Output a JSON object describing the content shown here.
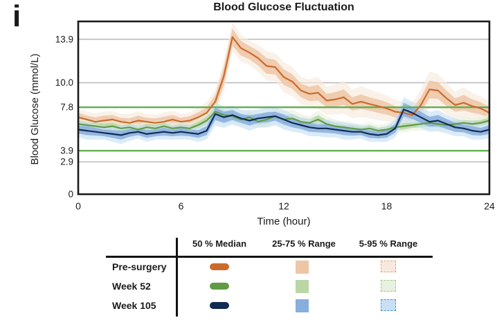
{
  "figure_label": "i",
  "colors": {
    "gridline": "#C4C4C4",
    "target_line": "#5FAE50",
    "frame": "#1A1A1A",
    "text": "#1A1A1A"
  },
  "chart_data": {
    "type": "line",
    "title": "Blood Glucose Fluctuation",
    "xlabel": "Time (hour)",
    "ylabel": "Blood Glucose (mmol/L)",
    "xlim": [
      0,
      24
    ],
    "ylim": [
      0,
      15.5
    ],
    "x_ticks": [
      0,
      6,
      12,
      18,
      24
    ],
    "y_ticks": [
      {
        "value": 13.9,
        "label": "13.9"
      },
      {
        "value": 10.0,
        "label": "10.0"
      },
      {
        "value": 7.8,
        "label": "7.8"
      },
      {
        "value": 3.9,
        "label": "3.9"
      },
      {
        "value": 2.9,
        "label": "2.9"
      },
      {
        "value": 0,
        "label": "0"
      }
    ],
    "gridlines_gray": [
      13.9,
      10.0,
      2.9
    ],
    "target_lines_green": [
      7.8,
      3.9
    ],
    "grid": true,
    "legend_position": "bottom-table",
    "legend": {
      "columns": [
        "50 % Median",
        "25-75 % Range",
        "5-95 % Range"
      ],
      "rows": [
        "Pre-surgery",
        "Week 52",
        "Week 105"
      ]
    },
    "x": [
      0,
      0.5,
      1,
      1.5,
      2,
      2.5,
      3,
      3.5,
      4,
      4.5,
      5,
      5.5,
      6,
      6.5,
      7,
      7.5,
      8,
      8.5,
      9,
      9.5,
      10,
      10.5,
      11,
      11.5,
      12,
      12.5,
      13,
      13.5,
      14,
      14.5,
      15,
      15.5,
      16,
      16.5,
      17,
      17.5,
      18,
      18.5,
      19,
      19.5,
      20,
      20.5,
      21,
      21.5,
      22,
      22.5,
      23,
      23.5,
      24
    ],
    "series": [
      {
        "name": "Pre-surgery",
        "color": "#CB6A2B",
        "band25_color": "#EDC6A6",
        "band95_color": "#F8E9DC",
        "band95_border": "#E2A478",
        "median": [
          6.9,
          6.7,
          6.5,
          6.6,
          6.7,
          6.5,
          6.4,
          6.6,
          6.5,
          6.4,
          6.5,
          6.7,
          6.5,
          6.6,
          6.9,
          7.3,
          8.3,
          10.6,
          14.1,
          13.1,
          12.7,
          12.2,
          11.5,
          11.4,
          10.5,
          10.1,
          9.3,
          9.0,
          9.1,
          8.4,
          8.5,
          8.7,
          8.1,
          8.3,
          8.1,
          7.9,
          7.7,
          7.4,
          7.3,
          7.1,
          8.0,
          9.4,
          9.3,
          8.6,
          8.0,
          8.2,
          7.9,
          7.7,
          7.3
        ],
        "hw25": [
          0.4,
          0.35,
          0.4,
          0.45,
          0.4,
          0.35,
          0.4,
          0.45,
          0.35,
          0.4,
          0.45,
          0.4,
          0.35,
          0.4,
          0.45,
          0.5,
          0.6,
          0.8,
          0.75,
          0.65,
          0.6,
          0.65,
          0.7,
          0.65,
          0.7,
          0.65,
          0.6,
          0.65,
          0.7,
          0.6,
          0.65,
          0.7,
          0.6,
          0.65,
          0.6,
          0.6,
          0.55,
          0.5,
          0.5,
          0.55,
          0.7,
          0.8,
          0.75,
          0.7,
          0.6,
          0.7,
          0.6,
          0.55,
          0.5
        ],
        "hw95": [
          0.75,
          0.7,
          0.75,
          0.8,
          0.75,
          0.7,
          0.8,
          0.85,
          0.7,
          0.75,
          0.85,
          0.8,
          0.7,
          0.75,
          0.85,
          0.95,
          1.1,
          1.4,
          1.3,
          1.2,
          1.1,
          1.2,
          1.3,
          1.25,
          1.35,
          1.3,
          1.2,
          1.3,
          1.45,
          1.25,
          1.35,
          1.45,
          1.3,
          1.4,
          1.3,
          1.25,
          1.15,
          1.05,
          1.0,
          1.1,
          1.4,
          1.6,
          1.5,
          1.4,
          1.2,
          1.4,
          1.2,
          1.1,
          1.0
        ]
      },
      {
        "name": "Week 52",
        "color": "#5F9B42",
        "band25_color": "#BBD6A5",
        "band95_color": "#E8F1DF",
        "band95_border": "#A3C98B",
        "median": [
          6.3,
          6.2,
          6.1,
          6.0,
          6.1,
          5.9,
          6.0,
          5.8,
          6.0,
          5.9,
          6.1,
          5.9,
          6.0,
          5.9,
          6.2,
          6.6,
          7.4,
          7.1,
          7.0,
          6.7,
          6.9,
          6.5,
          6.7,
          7.0,
          6.7,
          6.8,
          6.5,
          6.4,
          6.7,
          6.3,
          6.1,
          6.0,
          5.9,
          5.8,
          5.9,
          5.7,
          5.8,
          6.0,
          6.1,
          6.2,
          6.3,
          6.4,
          6.3,
          6.2,
          6.3,
          6.4,
          6.3,
          6.4,
          6.6
        ],
        "hw25": [
          0.3,
          0.25,
          0.3,
          0.35,
          0.3,
          0.25,
          0.3,
          0.25,
          0.3,
          0.35,
          0.3,
          0.25,
          0.3,
          0.25,
          0.3,
          0.35,
          0.45,
          0.4,
          0.35,
          0.3,
          0.35,
          0.3,
          0.35,
          0.4,
          0.35,
          0.4,
          0.35,
          0.3,
          0.4,
          0.35,
          0.3,
          0.25,
          0.3,
          0.25,
          0.3,
          0.25,
          0.3,
          0.25,
          0.3,
          0.25,
          0.3,
          0.35,
          0.3,
          0.25,
          0.3,
          0.25,
          0.3,
          0.25,
          0.3
        ],
        "hw95": [
          0.55,
          0.5,
          0.55,
          0.6,
          0.55,
          0.5,
          0.6,
          0.5,
          0.55,
          0.65,
          0.55,
          0.5,
          0.55,
          0.5,
          0.6,
          0.7,
          0.85,
          0.75,
          0.65,
          0.6,
          0.7,
          0.6,
          0.7,
          0.8,
          0.7,
          0.8,
          0.7,
          0.6,
          0.8,
          0.7,
          0.6,
          0.5,
          0.55,
          0.5,
          0.55,
          0.5,
          0.55,
          0.5,
          0.55,
          0.5,
          0.6,
          0.65,
          0.6,
          0.5,
          0.55,
          0.5,
          0.55,
          0.5,
          0.6
        ]
      },
      {
        "name": "Week 105",
        "color": "#122B52",
        "band25_color": "#87AEDD",
        "band95_color": "#C8E0F4",
        "band95_border": "#4E97D3",
        "median": [
          5.8,
          5.7,
          5.6,
          5.5,
          5.4,
          5.3,
          5.5,
          5.6,
          5.4,
          5.5,
          5.6,
          5.5,
          5.6,
          5.5,
          5.4,
          5.7,
          7.2,
          6.9,
          7.1,
          6.8,
          6.6,
          6.8,
          6.9,
          7.0,
          6.7,
          6.4,
          6.2,
          6.0,
          5.9,
          5.9,
          5.8,
          5.7,
          5.6,
          5.6,
          5.4,
          5.3,
          5.4,
          5.9,
          7.6,
          7.3,
          6.9,
          6.5,
          6.6,
          6.3,
          6.0,
          5.9,
          5.7,
          5.6,
          5.8
        ],
        "hw25": [
          0.35,
          0.4,
          0.35,
          0.3,
          0.35,
          0.4,
          0.35,
          0.3,
          0.35,
          0.3,
          0.35,
          0.3,
          0.35,
          0.3,
          0.35,
          0.4,
          0.55,
          0.5,
          0.45,
          0.4,
          0.45,
          0.4,
          0.45,
          0.4,
          0.45,
          0.4,
          0.35,
          0.4,
          0.35,
          0.4,
          0.35,
          0.4,
          0.35,
          0.3,
          0.35,
          0.3,
          0.35,
          0.4,
          0.6,
          0.55,
          0.5,
          0.45,
          0.5,
          0.45,
          0.4,
          0.35,
          0.4,
          0.35,
          0.4
        ],
        "hw95": [
          0.7,
          0.8,
          0.7,
          0.6,
          0.7,
          0.8,
          0.7,
          0.6,
          0.7,
          0.6,
          0.7,
          0.6,
          0.7,
          0.6,
          0.7,
          0.8,
          1.05,
          0.95,
          0.85,
          0.8,
          0.9,
          0.8,
          0.9,
          0.8,
          0.9,
          0.8,
          0.7,
          0.8,
          0.7,
          0.8,
          0.7,
          0.8,
          0.7,
          0.6,
          0.7,
          0.6,
          0.7,
          0.8,
          1.1,
          1.0,
          0.95,
          0.9,
          0.95,
          0.85,
          0.8,
          0.7,
          0.8,
          0.7,
          0.8
        ]
      }
    ]
  }
}
